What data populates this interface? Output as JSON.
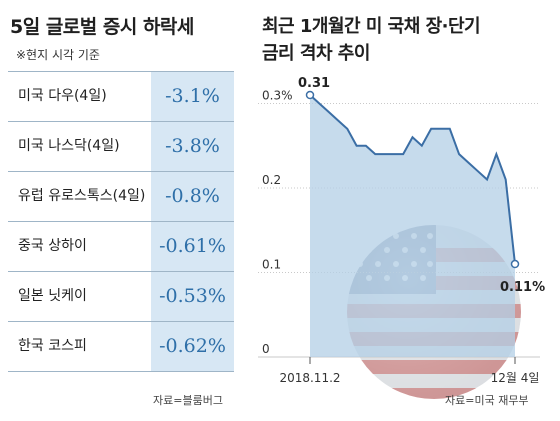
{
  "left_table": {
    "title": "5일 글로벌 증시 하락세",
    "subtitle": "※현지 시각 기준",
    "rows": [
      {
        "label": "미국 다우(4일)",
        "value": "-3.1%"
      },
      {
        "label": "미국 나스닥(4일)",
        "value": "-3.8%"
      },
      {
        "label": "유럽 유로스톡스(4일)",
        "value": "-0.8%"
      },
      {
        "label": "중국 상하이",
        "value": "-0.61%"
      },
      {
        "label": "일본 닛케이",
        "value": "-0.53%"
      },
      {
        "label": "한국 코스피",
        "value": "-0.62%"
      }
    ],
    "source": "자료=블룸버그"
  },
  "chart_title_line1": "최근 1개월간 미 국채 장·단기",
  "chart_title_line2": "금리 격차 추이",
  "chart_source": "자료=미국 재무부",
  "colors": {
    "accent": "#2e6fa8",
    "cell_bg": "#d7e7f4",
    "area": "#b3cfe6",
    "line": "#3b6ea5"
  },
  "chart_data": {
    "type": "area",
    "title": "최근 1개월간 미 국채 장·단기 금리 격차 추이",
    "xlabel": "",
    "ylabel": "",
    "x_tick_labels": [
      "2018.11.2",
      "12월 4일"
    ],
    "y_tick_labels": [
      "0",
      "0.1",
      "0.2",
      "0.3%"
    ],
    "y_ticks": [
      0,
      0.1,
      0.2,
      0.3
    ],
    "ylim": [
      0,
      0.31
    ],
    "grid": true,
    "annotations": [
      {
        "text": "0.31",
        "x_index": 0,
        "y": 0.31
      },
      {
        "text": "0.11%",
        "x_index": 22,
        "y": 0.11
      }
    ],
    "series": [
      {
        "values": [
          0.31,
          0.3,
          0.29,
          0.28,
          0.27,
          0.25,
          0.25,
          0.24,
          0.24,
          0.24,
          0.24,
          0.26,
          0.25,
          0.27,
          0.27,
          0.27,
          0.24,
          0.23,
          0.22,
          0.21,
          0.24,
          0.21,
          0.11
        ]
      }
    ]
  }
}
